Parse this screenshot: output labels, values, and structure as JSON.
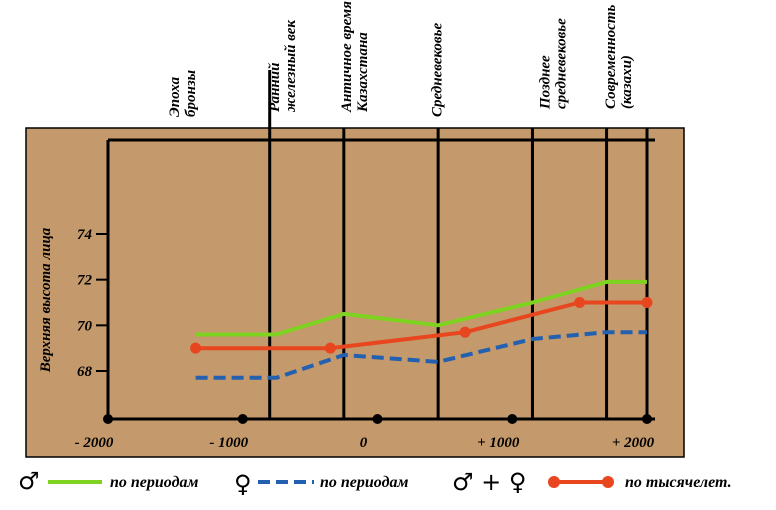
{
  "chart_data": {
    "type": "line",
    "ylabel": "Верхняя высота лица",
    "xlim": [
      -2000,
      2000
    ],
    "ylim": [
      66,
      78
    ],
    "x_ticks": [
      {
        "value": -2000,
        "label": "- 2000"
      },
      {
        "value": -1000,
        "label": "- 1000"
      },
      {
        "value": 0,
        "label": "0"
      },
      {
        "value": 1000,
        "label": "+ 1000"
      },
      {
        "value": 2000,
        "label": "+ 2000"
      }
    ],
    "y_ticks": [
      {
        "value": 68,
        "label": "68"
      },
      {
        "value": 70,
        "label": "70"
      },
      {
        "value": 72,
        "label": "72"
      },
      {
        "value": 74,
        "label": "74"
      }
    ],
    "periods": [
      {
        "lines": [
          "Эпоха",
          "бронзы"
        ]
      },
      {
        "lines": [
          "Ранний",
          "железный век"
        ]
      },
      {
        "lines": [
          "Античное время",
          "Казахстана"
        ]
      },
      {
        "lines": [
          "Средневековье"
        ]
      },
      {
        "lines": [
          "Позднее",
          "средневековье"
        ]
      },
      {
        "lines": [
          "Современность",
          "(казахи)"
        ]
      }
    ],
    "period_boundaries": [
      -2000,
      -800,
      -250,
      450,
      1150,
      1700,
      2000
    ],
    "series": [
      {
        "name": "по периодам",
        "symbol": "♂",
        "style": "solid",
        "color": "#7ed321",
        "points": [
          [
            -1350,
            69.6
          ],
          [
            -750,
            69.6
          ],
          [
            -250,
            70.5
          ],
          [
            450,
            70.0
          ],
          [
            1150,
            71.0
          ],
          [
            1700,
            71.9
          ],
          [
            2000,
            71.9
          ]
        ]
      },
      {
        "name": "по периодам",
        "symbol": "♀",
        "style": "dashed",
        "color": "#2460b0",
        "points": [
          [
            -1350,
            67.7
          ],
          [
            -750,
            67.7
          ],
          [
            -250,
            68.7
          ],
          [
            450,
            68.4
          ],
          [
            1150,
            69.4
          ],
          [
            1700,
            69.7
          ],
          [
            2000,
            69.7
          ]
        ]
      },
      {
        "name": "по тысячелет.",
        "symbol": "♂ + ♀",
        "style": "markers",
        "color": "#e8461e",
        "points": [
          [
            -1350,
            69.0
          ],
          [
            -350,
            69.0
          ],
          [
            650,
            69.7
          ],
          [
            1500,
            71.0
          ],
          [
            2000,
            71.0
          ]
        ]
      }
    ]
  }
}
